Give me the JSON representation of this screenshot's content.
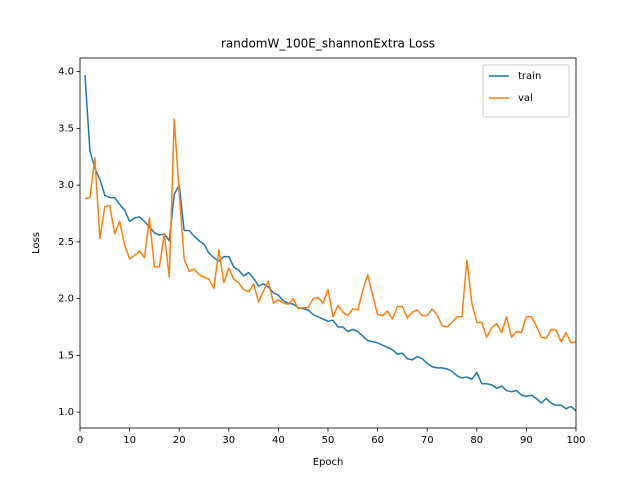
{
  "chart_data": {
    "type": "line",
    "title": "randomW_100E_shannonExtra Loss",
    "x_label": "Epoch",
    "y_label": "Loss",
    "x": [
      1,
      2,
      3,
      4,
      5,
      6,
      7,
      8,
      9,
      10,
      11,
      12,
      13,
      14,
      15,
      16,
      17,
      18,
      19,
      20,
      21,
      22,
      23,
      24,
      25,
      26,
      27,
      28,
      29,
      30,
      31,
      32,
      33,
      34,
      35,
      36,
      37,
      38,
      39,
      40,
      41,
      42,
      43,
      44,
      45,
      46,
      47,
      48,
      49,
      50,
      51,
      52,
      53,
      54,
      55,
      56,
      57,
      58,
      59,
      60,
      61,
      62,
      63,
      64,
      65,
      66,
      67,
      68,
      69,
      70,
      71,
      72,
      73,
      74,
      75,
      76,
      77,
      78,
      79,
      80,
      81,
      82,
      83,
      84,
      85,
      86,
      87,
      88,
      89,
      90,
      91,
      92,
      93,
      94,
      95,
      96,
      97,
      98,
      99,
      100
    ],
    "series": [
      {
        "name": "train",
        "color": "#1f77b4",
        "values": [
          3.97,
          3.3,
          3.15,
          3.05,
          2.91,
          2.89,
          2.89,
          2.83,
          2.78,
          2.68,
          2.71,
          2.72,
          2.68,
          2.63,
          2.58,
          2.56,
          2.57,
          2.51,
          2.92,
          3.0,
          2.6,
          2.6,
          2.55,
          2.51,
          2.48,
          2.4,
          2.36,
          2.33,
          2.37,
          2.37,
          2.28,
          2.25,
          2.2,
          2.23,
          2.18,
          2.11,
          2.13,
          2.1,
          2.05,
          2.03,
          1.98,
          1.96,
          1.95,
          1.92,
          1.91,
          1.9,
          1.86,
          1.84,
          1.82,
          1.8,
          1.81,
          1.75,
          1.75,
          1.71,
          1.73,
          1.71,
          1.67,
          1.63,
          1.62,
          1.61,
          1.59,
          1.57,
          1.55,
          1.51,
          1.52,
          1.47,
          1.46,
          1.49,
          1.47,
          1.43,
          1.4,
          1.39,
          1.39,
          1.38,
          1.36,
          1.32,
          1.3,
          1.31,
          1.29,
          1.35,
          1.25,
          1.25,
          1.24,
          1.21,
          1.23,
          1.19,
          1.18,
          1.19,
          1.15,
          1.14,
          1.15,
          1.12,
          1.08,
          1.12,
          1.08,
          1.06,
          1.06,
          1.03,
          1.05,
          1.01
        ]
      },
      {
        "name": "val",
        "color": "#ff7f0e",
        "values": [
          2.88,
          2.89,
          3.24,
          2.53,
          2.81,
          2.82,
          2.57,
          2.68,
          2.47,
          2.35,
          2.38,
          2.42,
          2.36,
          2.71,
          2.28,
          2.28,
          2.57,
          2.19,
          3.58,
          2.93,
          2.35,
          2.24,
          2.26,
          2.21,
          2.19,
          2.17,
          2.09,
          2.43,
          2.14,
          2.27,
          2.17,
          2.14,
          2.08,
          2.06,
          2.13,
          1.97,
          2.07,
          2.15,
          1.96,
          1.99,
          1.96,
          1.95,
          2.0,
          1.91,
          1.92,
          1.92,
          2.0,
          2.01,
          1.96,
          2.08,
          1.84,
          1.94,
          1.88,
          1.85,
          1.91,
          1.9,
          2.07,
          2.21,
          2.03,
          1.86,
          1.85,
          1.89,
          1.82,
          1.93,
          1.93,
          1.83,
          1.88,
          1.9,
          1.85,
          1.85,
          1.91,
          1.86,
          1.76,
          1.75,
          1.79,
          1.84,
          1.84,
          2.34,
          1.96,
          1.79,
          1.79,
          1.66,
          1.74,
          1.78,
          1.7,
          1.84,
          1.66,
          1.71,
          1.7,
          1.84,
          1.84,
          1.76,
          1.66,
          1.65,
          1.73,
          1.72,
          1.62,
          1.7,
          1.61,
          1.62
        ]
      }
    ],
    "xlim": [
      0,
      100
    ],
    "xticks": [
      0,
      10,
      20,
      30,
      40,
      50,
      60,
      70,
      80,
      90,
      100
    ],
    "ylim": [
      0.86,
      4.12
    ],
    "yticks": [
      {
        "value": 1.0,
        "label": "1.0"
      },
      1.5,
      {
        "value": 2.0,
        "label": "2.0"
      },
      2.5,
      {
        "value": 3.0,
        "label": "3.0"
      },
      3.5,
      {
        "value": 4.0,
        "label": "4.0"
      }
    ],
    "legend": "upper right",
    "grid": false
  }
}
